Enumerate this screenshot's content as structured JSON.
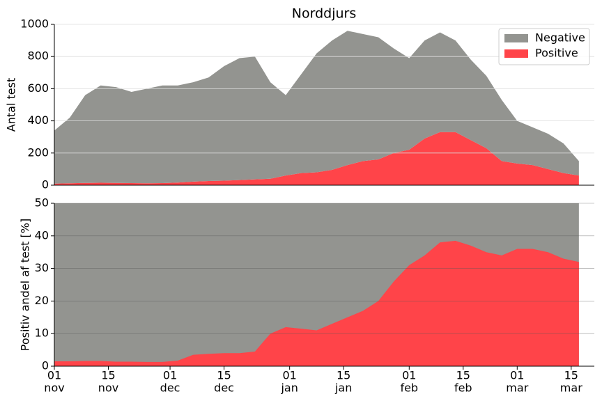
{
  "chart_data": [
    {
      "type": "stacked-area",
      "title": "Norddjurs",
      "ylabel": "Antal test",
      "x": [
        0,
        4,
        8,
        12,
        16,
        20,
        24,
        28,
        32,
        36,
        40,
        44,
        48,
        52,
        56,
        60,
        64,
        68,
        72,
        76,
        80,
        84,
        88,
        92,
        96,
        100,
        104,
        108,
        112,
        116,
        120,
        124,
        128,
        132,
        136
      ],
      "xlim": [
        0,
        140
      ],
      "ylim": [
        0,
        1000
      ],
      "yticks": [
        0,
        200,
        400,
        600,
        800,
        1000
      ],
      "grid": true,
      "legend": "upper right",
      "series": [
        {
          "name": "Negative",
          "color": "#939490",
          "values": [
            330,
            408,
            546,
            605,
            596,
            567,
            588,
            607,
            604,
            618,
            644,
            712,
            758,
            764,
            600,
            500,
            615,
            740,
            805,
            835,
            790,
            760,
            650,
            570,
            610,
            620,
            570,
            500,
            450,
            380,
            265,
            235,
            220,
            185,
            90
          ]
        },
        {
          "name": "Positive",
          "color": "#ff4449",
          "values": [
            10,
            12,
            14,
            15,
            14,
            13,
            12,
            13,
            16,
            22,
            26,
            28,
            32,
            36,
            40,
            60,
            75,
            80,
            95,
            125,
            150,
            160,
            200,
            220,
            290,
            330,
            330,
            280,
            230,
            150,
            135,
            125,
            100,
            75,
            60
          ]
        }
      ]
    },
    {
      "type": "share-area",
      "ylabel": "Positiv andel af test [%]",
      "x": [
        0,
        4,
        8,
        12,
        16,
        20,
        24,
        28,
        32,
        36,
        40,
        44,
        48,
        52,
        56,
        60,
        64,
        68,
        72,
        76,
        80,
        84,
        88,
        92,
        96,
        100,
        104,
        108,
        112,
        116,
        120,
        124,
        128,
        132,
        136
      ],
      "xlim": [
        0,
        140
      ],
      "ylim": [
        0,
        50
      ],
      "yticks": [
        0,
        10,
        20,
        30,
        40,
        50
      ],
      "grid": true,
      "background": "#939490",
      "xticks": [
        {
          "value": 0,
          "label": [
            "01",
            "nov"
          ]
        },
        {
          "value": 14,
          "label": [
            "15",
            "nov"
          ]
        },
        {
          "value": 30,
          "label": [
            "01",
            "dec"
          ]
        },
        {
          "value": 44,
          "label": [
            "15",
            "dec"
          ]
        },
        {
          "value": 61,
          "label": [
            "01",
            "jan"
          ]
        },
        {
          "value": 75,
          "label": [
            "15",
            "jan"
          ]
        },
        {
          "value": 92,
          "label": [
            "01",
            "feb"
          ]
        },
        {
          "value": 106,
          "label": [
            "15",
            "feb"
          ]
        },
        {
          "value": 120,
          "label": [
            "01",
            "mar"
          ]
        },
        {
          "value": 134,
          "label": [
            "15",
            "mar"
          ]
        }
      ],
      "series": [
        {
          "name": "Positive",
          "color": "#ff4449",
          "values": [
            1.5,
            1.5,
            1.6,
            1.6,
            1.4,
            1.4,
            1.3,
            1.3,
            1.7,
            3.5,
            3.8,
            4,
            4,
            4.5,
            10,
            12,
            11.5,
            11,
            13,
            15,
            17,
            20,
            26,
            31,
            34,
            38,
            38.5,
            37,
            35,
            34,
            36,
            36,
            35,
            33,
            32
          ]
        }
      ]
    }
  ]
}
